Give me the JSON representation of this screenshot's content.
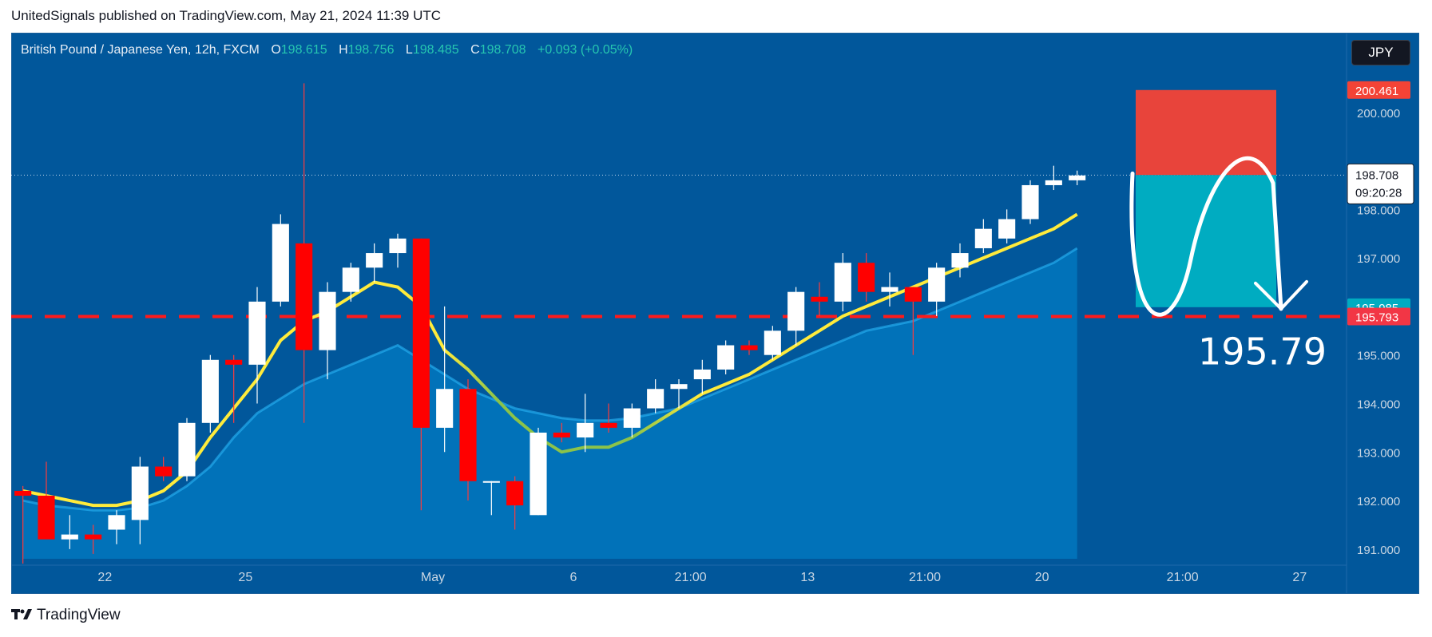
{
  "publisher_line": "UnitedSignals published on TradingView.com, May 21, 2024 11:39 UTC",
  "legend": {
    "symbol": "British Pound / Japanese Yen, 12h, FXCM",
    "open_label": "O",
    "open": "198.615",
    "high_label": "H",
    "high": "198.756",
    "low_label": "L",
    "low": "198.485",
    "close_label": "C",
    "close": "198.708",
    "change": "+0.093 (+0.05%)"
  },
  "currency_button": "JPY",
  "footer": {
    "logo_icon": "tradingview-logo-icon",
    "brand": "TradingView"
  },
  "colors": {
    "background": "#01579b",
    "up_candle": "#ffffff",
    "down_candle": "#ff0000",
    "ema_fast": "#ffeb3b",
    "ema_slow_area": "#0288d1",
    "target_line": "#ff1a1a",
    "stop_zone": "#f44336",
    "target_zone": "#00acc1"
  },
  "chart_data": {
    "type": "candlestick",
    "ylim": [
      190.8,
      201.0
    ],
    "y_ticks": [
      "200.000",
      "198.000",
      "197.000",
      "195.000",
      "194.000",
      "193.000",
      "192.000",
      "191.000"
    ],
    "x_ticks": [
      "22",
      "25",
      "May",
      "6",
      "21:00",
      "13",
      "21:00",
      "20",
      "21:00",
      "27"
    ],
    "x_tick_positions": [
      3.5,
      9.5,
      17.5,
      23.5,
      28.5,
      33.5,
      38.5,
      43.5,
      49.5,
      54.5
    ],
    "total_slots": 57,
    "candles": [
      [
        192.2,
        192.3,
        190.7,
        192.1
      ],
      [
        192.1,
        192.8,
        191.3,
        191.2
      ],
      [
        191.2,
        191.7,
        191.0,
        191.3
      ],
      [
        191.3,
        191.5,
        190.9,
        191.2
      ],
      [
        191.4,
        191.8,
        191.1,
        191.7
      ],
      [
        191.6,
        192.9,
        191.1,
        192.7
      ],
      [
        192.7,
        192.9,
        192.4,
        192.5
      ],
      [
        192.5,
        193.7,
        192.4,
        193.6
      ],
      [
        193.6,
        195.0,
        193.4,
        194.9
      ],
      [
        194.9,
        195.0,
        193.6,
        194.8
      ],
      [
        194.8,
        196.4,
        194.0,
        196.1
      ],
      [
        196.1,
        197.9,
        196.0,
        197.7
      ],
      [
        197.3,
        200.6,
        193.6,
        195.1
      ],
      [
        195.1,
        196.5,
        194.5,
        196.3
      ],
      [
        196.3,
        196.9,
        196.1,
        196.8
      ],
      [
        196.8,
        197.3,
        196.5,
        197.1
      ],
      [
        197.1,
        197.5,
        196.8,
        197.4
      ],
      [
        197.4,
        197.4,
        191.8,
        193.5
      ],
      [
        193.5,
        196.0,
        193.0,
        194.3
      ],
      [
        194.3,
        194.5,
        192.0,
        192.4
      ],
      [
        192.4,
        192.4,
        191.7,
        192.4
      ],
      [
        192.4,
        192.5,
        191.4,
        191.9
      ],
      [
        191.7,
        193.5,
        191.7,
        193.4
      ],
      [
        193.4,
        193.6,
        193.2,
        193.3
      ],
      [
        193.3,
        194.2,
        193.0,
        193.6
      ],
      [
        193.6,
        194.0,
        193.4,
        193.5
      ],
      [
        193.5,
        194.0,
        193.3,
        193.9
      ],
      [
        193.9,
        194.5,
        193.8,
        194.3
      ],
      [
        194.3,
        194.5,
        193.9,
        194.4
      ],
      [
        194.5,
        194.9,
        194.2,
        194.7
      ],
      [
        194.7,
        195.3,
        194.6,
        195.2
      ],
      [
        195.2,
        195.3,
        195.0,
        195.1
      ],
      [
        195.0,
        195.6,
        194.9,
        195.5
      ],
      [
        195.5,
        196.4,
        195.2,
        196.3
      ],
      [
        196.2,
        196.5,
        195.8,
        196.1
      ],
      [
        196.1,
        197.1,
        195.9,
        196.9
      ],
      [
        196.9,
        197.1,
        196.1,
        196.3
      ],
      [
        196.3,
        196.7,
        196.0,
        196.4
      ],
      [
        196.4,
        196.4,
        195.0,
        196.1
      ],
      [
        196.1,
        196.9,
        195.8,
        196.8
      ],
      [
        196.8,
        197.3,
        196.6,
        197.1
      ],
      [
        197.2,
        197.8,
        197.1,
        197.6
      ],
      [
        197.4,
        198.0,
        197.3,
        197.8
      ],
      [
        197.8,
        198.6,
        197.7,
        198.5
      ],
      [
        198.5,
        198.9,
        198.4,
        198.6
      ],
      [
        198.6,
        198.8,
        198.5,
        198.7
      ]
    ],
    "ema_fast": [
      192.2,
      192.1,
      192.0,
      191.9,
      191.9,
      192.0,
      192.2,
      192.6,
      193.3,
      193.9,
      194.5,
      195.3,
      195.7,
      195.9,
      196.2,
      196.5,
      196.4,
      196.0,
      195.1,
      194.7,
      194.2,
      193.7,
      193.3,
      193.0,
      193.1,
      193.1,
      193.3,
      193.6,
      193.9,
      194.2,
      194.4,
      194.6,
      194.9,
      195.2,
      195.5,
      195.8,
      196.0,
      196.2,
      196.4,
      196.6,
      196.8,
      197.0,
      197.2,
      197.4,
      197.6,
      197.9
    ],
    "ema_slow_area": [
      192.0,
      191.9,
      191.85,
      191.8,
      191.8,
      191.85,
      192.0,
      192.3,
      192.7,
      193.3,
      193.8,
      194.1,
      194.4,
      194.6,
      194.8,
      195.0,
      195.2,
      194.9,
      194.6,
      194.3,
      194.1,
      193.9,
      193.8,
      193.7,
      193.65,
      193.65,
      193.7,
      193.8,
      193.9,
      194.1,
      194.3,
      194.5,
      194.7,
      194.9,
      195.1,
      195.3,
      195.5,
      195.6,
      195.7,
      195.9,
      196.1,
      196.3,
      196.5,
      196.7,
      196.9,
      197.2
    ],
    "current_price": 198.708,
    "target_level": 195.793,
    "target_text": "195.79",
    "position": {
      "stop": 200.461,
      "entry": 198.708,
      "target": 195.985,
      "x_start_slot": 47.5,
      "x_end_slot": 53.5
    },
    "price_labels": [
      {
        "value": "200.461",
        "color": "#f44336",
        "text_color": "#ffffff",
        "price": 200.461
      },
      {
        "value": "198.729",
        "color": "#787b86",
        "text_color": "#ffffff",
        "price": 198.729
      },
      {
        "value": "195.985",
        "color": "#00acc1",
        "text_color": "#ffffff",
        "price": 195.985
      },
      {
        "value": "195.793",
        "color": "#f23645",
        "text_color": "#ffffff",
        "price": 195.793
      }
    ],
    "last_price_label": {
      "value": "198.708",
      "countdown": "09:20:28",
      "price": 198.708
    }
  }
}
